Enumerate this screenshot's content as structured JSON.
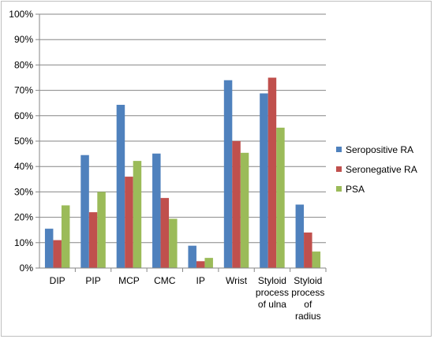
{
  "chart_data": {
    "type": "bar",
    "title": "",
    "xlabel": "",
    "ylabel": "",
    "ylim": [
      0,
      100
    ],
    "y_ticks": [
      "0%",
      "10%",
      "20%",
      "30%",
      "40%",
      "50%",
      "60%",
      "70%",
      "80%",
      "90%",
      "100%"
    ],
    "grid": true,
    "legend_position": "right",
    "categories": [
      [
        "DIP"
      ],
      [
        "PIP"
      ],
      [
        "MCP"
      ],
      [
        "CMC"
      ],
      [
        "IP"
      ],
      [
        "Wrist"
      ],
      [
        "Styloid",
        "process",
        "of ulna"
      ],
      [
        "Styloid",
        "process",
        "of",
        "radius"
      ]
    ],
    "series": [
      {
        "name": "Seropositive RA",
        "color": "#4F81BD",
        "values": [
          15.5,
          44.5,
          64.3,
          45.1,
          8.8,
          74.0,
          68.8,
          25.0
        ]
      },
      {
        "name": "Seronegative RA",
        "color": "#C0504D",
        "values": [
          11.0,
          22.0,
          36.0,
          27.6,
          2.7,
          50.0,
          75.0,
          14.0
        ]
      },
      {
        "name": "PSA",
        "color": "#9BBB59",
        "values": [
          24.7,
          30.0,
          42.2,
          19.4,
          4.0,
          45.4,
          55.3,
          6.5
        ]
      }
    ]
  }
}
